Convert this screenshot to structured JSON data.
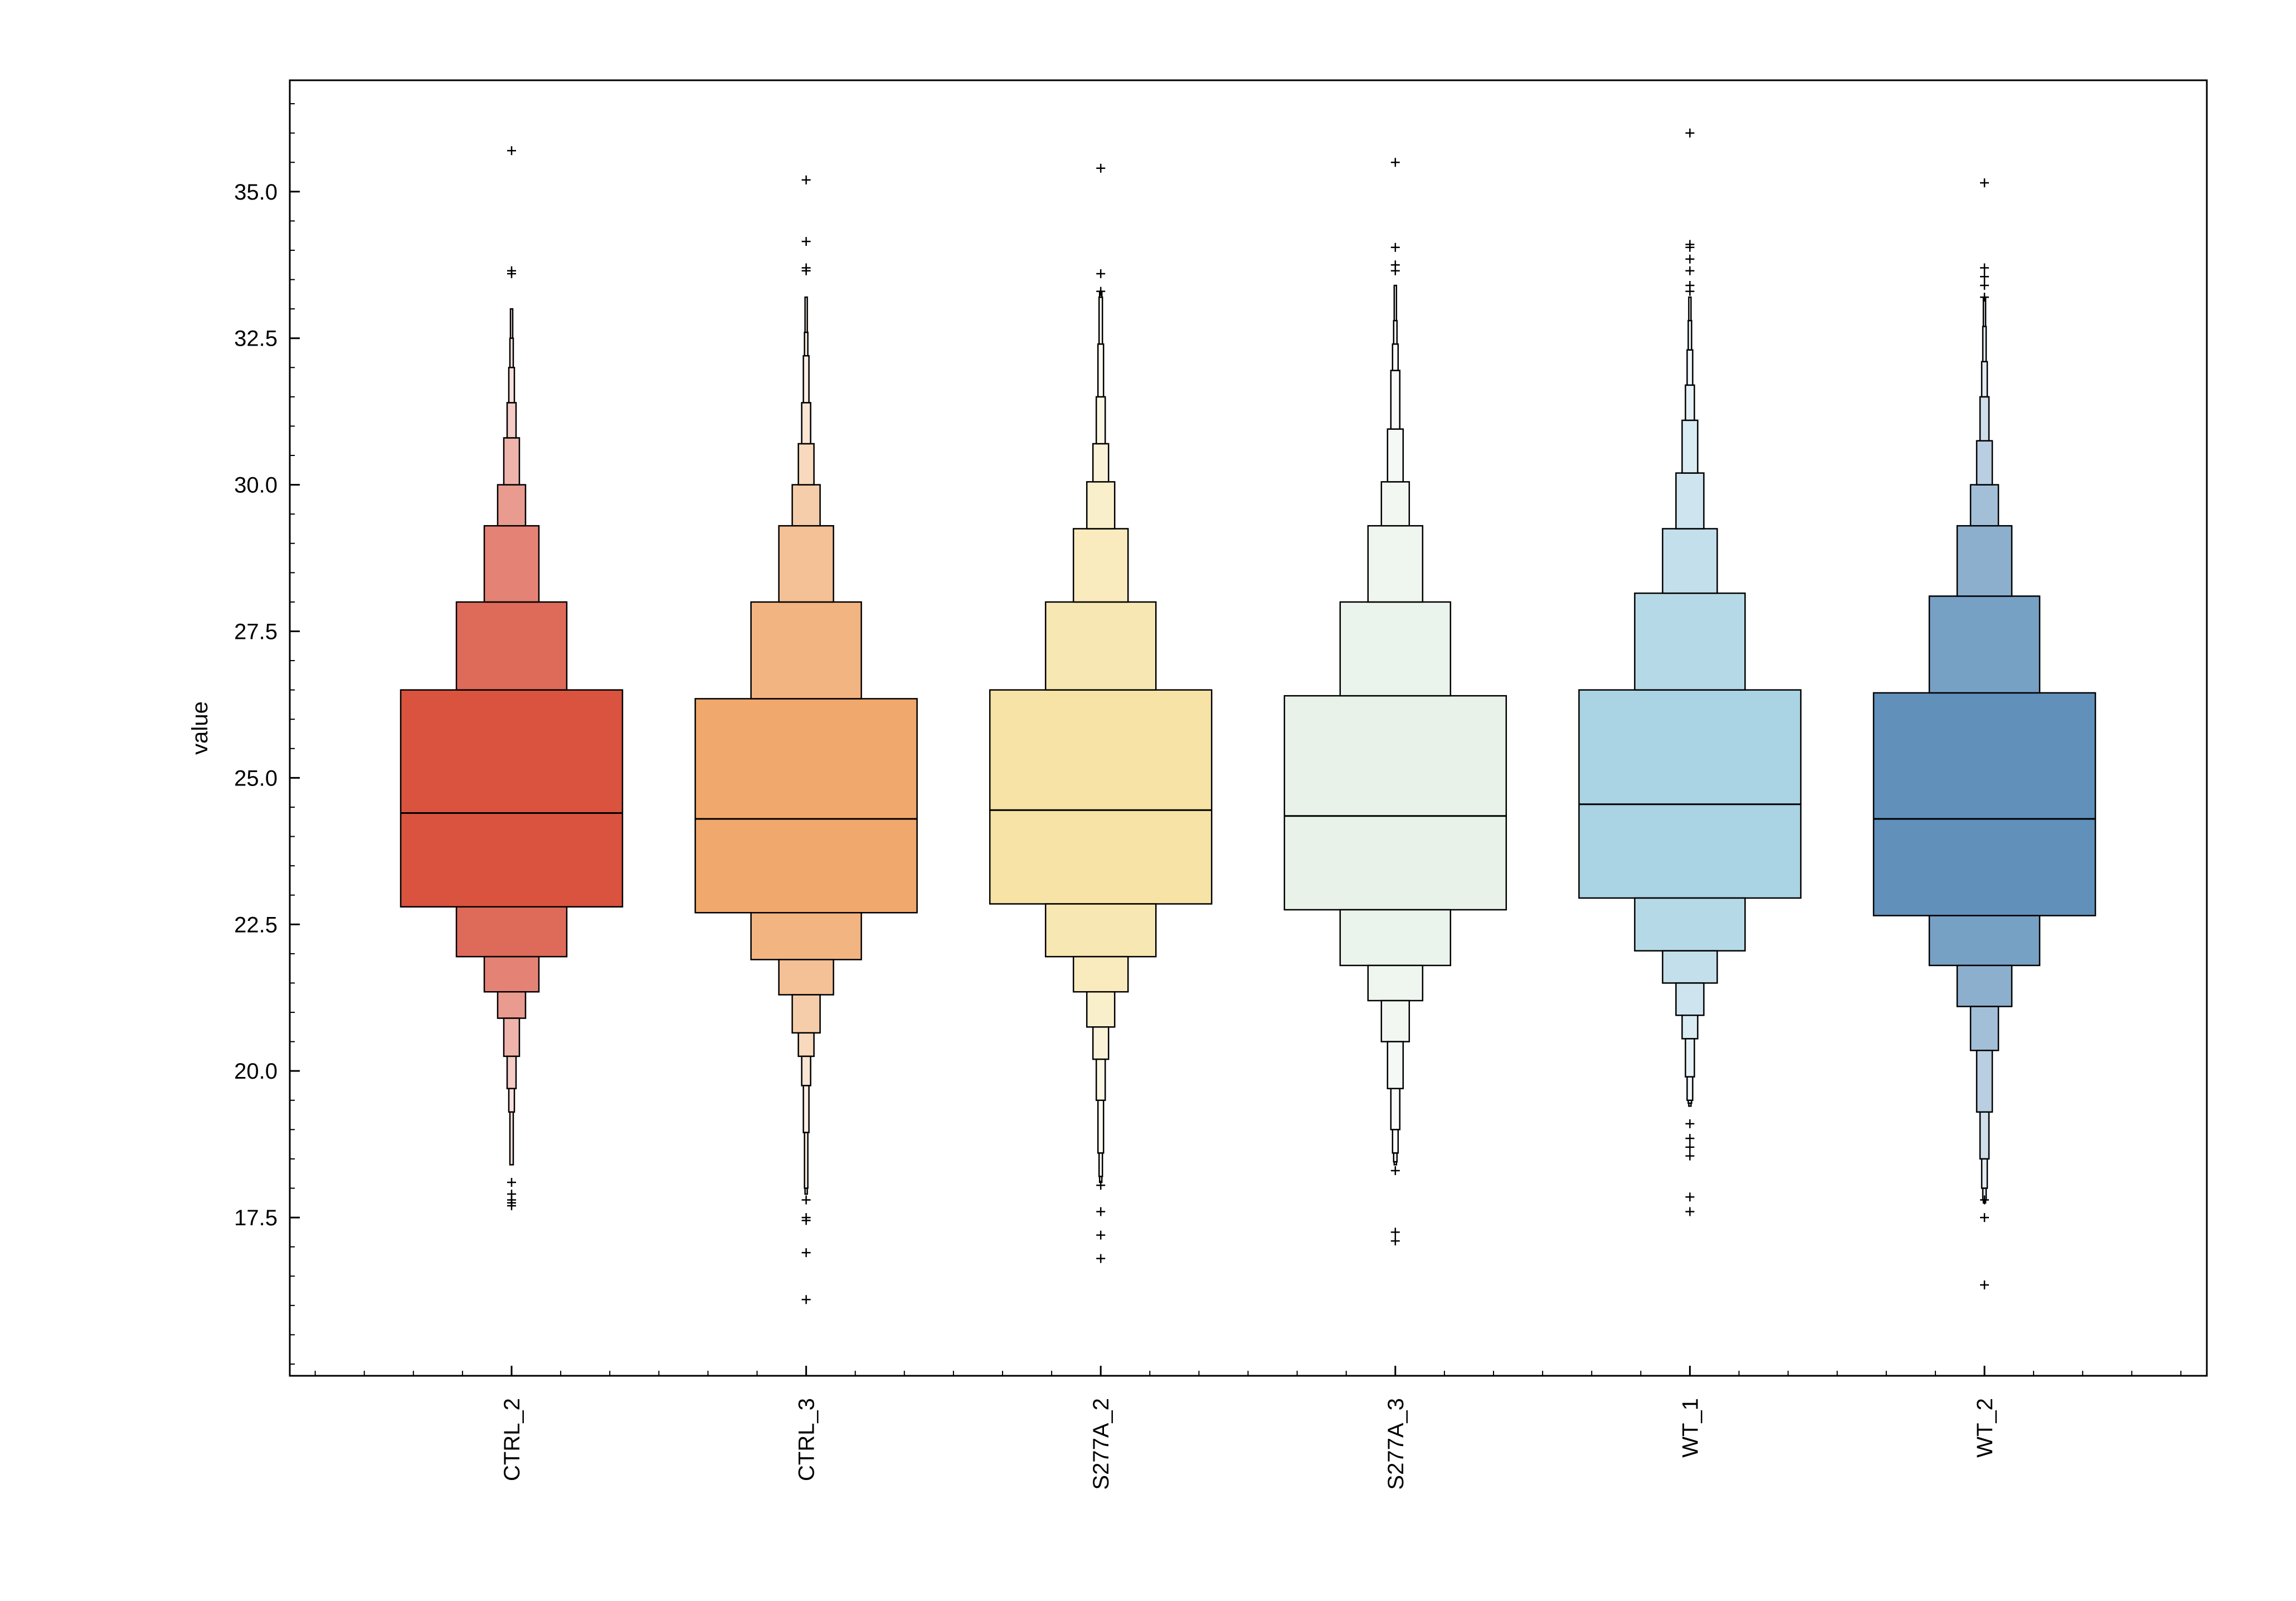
{
  "chart_data": {
    "type": "boxen",
    "title": "",
    "xlabel": "",
    "ylabel": "value",
    "ylim": [
      14.8,
      36.9
    ],
    "yticks": [
      17.5,
      20.0,
      22.5,
      25.0,
      27.5,
      30.0,
      32.5,
      35.0
    ],
    "ytick_labels": [
      "17.5",
      "20.0",
      "22.5",
      "25.0",
      "27.5",
      "30.0",
      "32.5",
      "35.0"
    ],
    "categories": [
      "CTRL_2",
      "CTRL_3",
      "S277A_2",
      "S277A_3",
      "WT_1",
      "WT_2"
    ],
    "series": [
      {
        "name": "CTRL_2",
        "color": "#d9533f",
        "median": 24.4,
        "levels": [
          [
            22.8,
            26.5
          ],
          [
            21.95,
            28.0
          ],
          [
            21.35,
            29.3
          ],
          [
            20.9,
            30.0
          ],
          [
            20.25,
            30.8
          ],
          [
            19.7,
            31.4
          ],
          [
            19.3,
            32.0
          ],
          [
            18.4,
            32.5
          ],
          [
            18.4,
            33.0
          ]
        ],
        "outliers": [
          35.7,
          33.6,
          33.65,
          18.1,
          17.9,
          17.8,
          17.75,
          17.7
        ]
      },
      {
        "name": "CTRL_3",
        "color": "#f0a86c",
        "median": 24.3,
        "levels": [
          [
            22.7,
            26.35
          ],
          [
            21.9,
            28.0
          ],
          [
            21.3,
            29.3
          ],
          [
            20.65,
            30.0
          ],
          [
            20.25,
            30.7
          ],
          [
            19.75,
            31.4
          ],
          [
            18.95,
            32.2
          ],
          [
            18.0,
            32.6
          ],
          [
            17.9,
            33.2
          ]
        ],
        "outliers": [
          35.2,
          34.15,
          33.7,
          33.65,
          17.8,
          17.5,
          17.45,
          16.9,
          16.1
        ]
      },
      {
        "name": "S277A_2",
        "color": "#f6e3a5",
        "median": 24.45,
        "levels": [
          [
            22.85,
            26.5
          ],
          [
            21.95,
            28.0
          ],
          [
            21.35,
            29.25
          ],
          [
            20.75,
            30.05
          ],
          [
            20.2,
            30.7
          ],
          [
            19.5,
            31.5
          ],
          [
            18.6,
            32.4
          ],
          [
            18.2,
            33.2
          ],
          [
            18.1,
            33.3
          ]
        ],
        "outliers": [
          35.4,
          33.6,
          33.3,
          18.05,
          17.6,
          17.2,
          16.8
        ]
      },
      {
        "name": "S277A_3",
        "color": "#e8f2e9",
        "median": 24.35,
        "levels": [
          [
            22.75,
            26.4
          ],
          [
            21.8,
            28.0
          ],
          [
            21.2,
            29.3
          ],
          [
            20.5,
            30.05
          ],
          [
            19.7,
            30.95
          ],
          [
            19.0,
            31.95
          ],
          [
            18.6,
            32.4
          ],
          [
            18.45,
            32.8
          ],
          [
            18.4,
            33.4
          ]
        ],
        "outliers": [
          35.5,
          34.05,
          33.75,
          33.65,
          18.3,
          17.25,
          17.1
        ]
      },
      {
        "name": "WT_1",
        "color": "#aad3e3",
        "median": 24.55,
        "levels": [
          [
            22.95,
            26.5
          ],
          [
            22.05,
            28.15
          ],
          [
            21.5,
            29.25
          ],
          [
            20.95,
            30.2
          ],
          [
            20.55,
            31.1
          ],
          [
            19.9,
            31.7
          ],
          [
            19.5,
            32.3
          ],
          [
            19.45,
            32.8
          ],
          [
            19.4,
            33.2
          ]
        ],
        "outliers": [
          36.0,
          34.1,
          34.05,
          33.85,
          33.65,
          33.4,
          33.3,
          19.1,
          18.85,
          18.7,
          18.55,
          17.85,
          17.6
        ]
      },
      {
        "name": "WT_2",
        "color": "#6190bb",
        "median": 24.3,
        "levels": [
          [
            22.65,
            26.45
          ],
          [
            21.8,
            28.1
          ],
          [
            21.1,
            29.3
          ],
          [
            20.35,
            30.0
          ],
          [
            19.3,
            30.75
          ],
          [
            18.5,
            31.5
          ],
          [
            18.0,
            32.1
          ],
          [
            17.8,
            32.7
          ],
          [
            17.75,
            33.2
          ]
        ],
        "outliers": [
          35.15,
          33.7,
          33.55,
          33.4,
          33.2,
          17.8,
          17.5,
          16.35
        ]
      }
    ]
  }
}
